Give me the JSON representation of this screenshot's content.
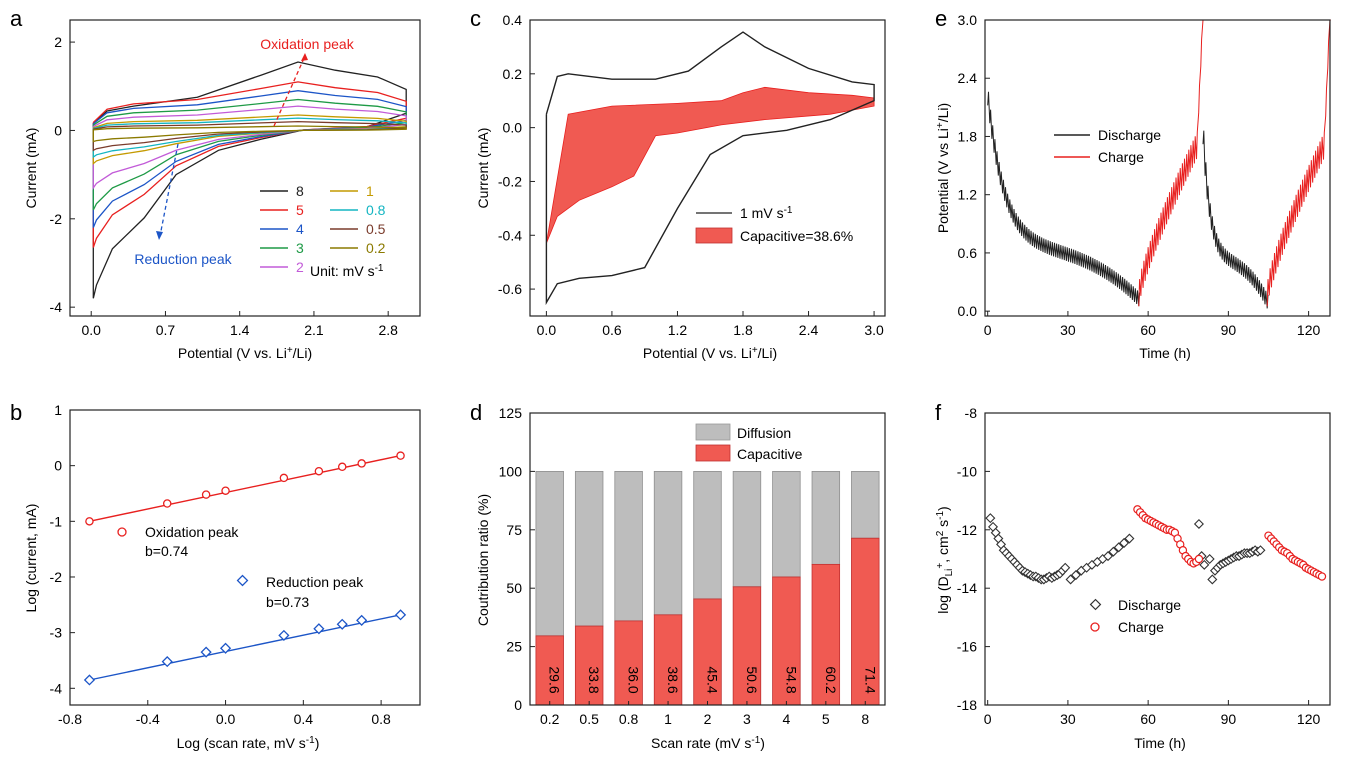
{
  "panels": {
    "a": {
      "letter": "a",
      "xlabel_pre": "Potential (V vs. Li",
      "xlabel_sup": "+",
      "xlabel_post": "/Li)",
      "ylabel": "Current (mA)",
      "xticks": [
        "0.0",
        "0.7",
        "1.4",
        "2.1",
        "2.8"
      ],
      "yticks": [
        "2",
        "0",
        "-2",
        "-4"
      ],
      "oxidation_label": "Oxidation peak",
      "reduction_label": "Reduction peak",
      "legend": [
        {
          "label": "8",
          "color": "#222222"
        },
        {
          "label": "1",
          "color": "#c49a00"
        },
        {
          "label": "5",
          "color": "#e8201f"
        },
        {
          "label": "0.8",
          "color": "#13b5c2"
        },
        {
          "label": "4",
          "color": "#1c55c7"
        },
        {
          "label": "0.5",
          "color": "#7a3b2b"
        },
        {
          "label": "3",
          "color": "#1e9a46"
        },
        {
          "label": "0.2",
          "color": "#8b7a00"
        },
        {
          "label": "2",
          "color": "#c25bd8"
        }
      ],
      "unit_pre": "Unit: mV s",
      "unit_sup": "-1"
    },
    "b": {
      "letter": "b",
      "xlabel_pre": "Log (scan rate, mV s",
      "xlabel_sup": "-1",
      "xlabel_post": ")",
      "ylabel": "Log (current, mA)",
      "xticks": [
        "-0.8",
        "-0.4",
        "0.0",
        "0.4",
        "0.8"
      ],
      "yticks": [
        "1",
        "0",
        "-1",
        "-2",
        "-3",
        "-4"
      ],
      "ox_label": "Oxidation peak",
      "ox_b": "b=0.74",
      "red_label": "Reduction peak",
      "red_b": "b=0.73"
    },
    "c": {
      "letter": "c",
      "xlabel_pre": "Potential (V vs. Li",
      "xlabel_sup": "+",
      "xlabel_post": "/Li)",
      "ylabel": "Current (mA)",
      "xticks": [
        "0.0",
        "0.6",
        "1.2",
        "1.8",
        "2.4",
        "3.0"
      ],
      "yticks": [
        "0.4",
        "0.2",
        "0.0",
        "-0.2",
        "-0.4",
        "-0.6"
      ],
      "legend_cv_pre": "1 mV s",
      "legend_cv_sup": "-1",
      "legend_cap": "Capacitive=38.6%"
    },
    "d": {
      "letter": "d",
      "xlabel_pre": "Scan rate (mV s",
      "xlabel_sup": "-1",
      "xlabel_post": ")",
      "ylabel": "Coutribution ratio (%)",
      "yticks": [
        "125",
        "100",
        "75",
        "50",
        "25",
        "0"
      ],
      "legend_diff": "Diffusion",
      "legend_cap": "Capacitive"
    },
    "e": {
      "letter": "e",
      "xlabel": "Time (h)",
      "ylabel_pre": "Potential (V vs Li",
      "ylabel_sup": "+",
      "ylabel_post": "/Li)",
      "xticks": [
        "0",
        "30",
        "60",
        "90",
        "120"
      ],
      "yticks": [
        "3.0",
        "2.4",
        "1.8",
        "1.2",
        "0.6",
        "0.0"
      ],
      "legend_dis": "Discharge",
      "legend_chg": "Charge"
    },
    "f": {
      "letter": "f",
      "xlabel": "Time (h)",
      "ylabel_pre": "log (D",
      "ylabel_sub": "Li",
      "ylabel_mid": "+",
      "ylabel_post": ", cm",
      "ylabel_sup2": "2",
      "ylabel_end": " s",
      "ylabel_sup3": "-1",
      "ylabel_close": ")",
      "xticks": [
        "0",
        "30",
        "60",
        "90",
        "120"
      ],
      "yticks": [
        "-8",
        "-10",
        "-12",
        "-14",
        "-16",
        "-18"
      ],
      "legend_dis": "Discharge",
      "legend_chg": "Charge"
    }
  },
  "colors": {
    "axis": "#222222",
    "red": "#e8201f",
    "blue": "#1c55c7",
    "capacitive_fill": "#f05a52",
    "diffusion_fill": "#bdbdbd"
  },
  "chart_data": [
    {
      "id": "a",
      "type": "line",
      "title": "",
      "xlabel": "Potential (V vs. Li+/Li)",
      "ylabel": "Current (mA)",
      "xlim": [
        -0.2,
        3.1
      ],
      "ylim": [
        -4.2,
        2.5
      ],
      "series": [
        {
          "name": "8",
          "upper_peak": 1.55,
          "upper_base": 0.55,
          "lower_min": -3.8,
          "lower_mid": -1.0
        },
        {
          "name": "5",
          "upper_peak": 1.1,
          "upper_base": 0.6,
          "lower_min": -2.65,
          "lower_mid": -0.8
        },
        {
          "name": "4",
          "upper_peak": 0.9,
          "upper_base": 0.5,
          "lower_min": -2.2,
          "lower_mid": -0.7
        },
        {
          "name": "3",
          "upper_peak": 0.7,
          "upper_base": 0.4,
          "lower_min": -1.8,
          "lower_mid": -0.55
        },
        {
          "name": "2",
          "upper_peak": 0.55,
          "upper_base": 0.3,
          "lower_min": -1.3,
          "lower_mid": -0.45
        },
        {
          "name": "1",
          "upper_peak": 0.35,
          "upper_base": 0.2,
          "lower_min": -0.75,
          "lower_mid": -0.3
        },
        {
          "name": "0.8",
          "upper_peak": 0.28,
          "upper_base": 0.15,
          "lower_min": -0.6,
          "lower_mid": -0.25
        },
        {
          "name": "0.5",
          "upper_peak": 0.2,
          "upper_base": 0.1,
          "lower_min": -0.45,
          "lower_mid": -0.18
        },
        {
          "name": "0.2",
          "upper_peak": 0.1,
          "upper_base": 0.05,
          "lower_min": -0.25,
          "lower_mid": -0.1
        }
      ]
    },
    {
      "id": "b",
      "type": "scatter",
      "xlabel": "Log (scan rate, mV s-1)",
      "ylabel": "Log (current, mA)",
      "xlim": [
        -0.8,
        1.0
      ],
      "ylim": [
        -4.3,
        1.0
      ],
      "series": [
        {
          "name": "Oxidation peak",
          "x": [
            -0.7,
            -0.3,
            -0.1,
            0.0,
            0.3,
            0.48,
            0.6,
            0.7,
            0.9
          ],
          "y": [
            -1.0,
            -0.68,
            -0.52,
            -0.45,
            -0.22,
            -0.1,
            -0.02,
            0.04,
            0.18
          ],
          "fit": [
            [
              -0.7,
              -1.0
            ],
            [
              0.9,
              0.18
            ]
          ]
        },
        {
          "name": "Reduction peak",
          "x": [
            -0.7,
            -0.3,
            -0.1,
            0.0,
            0.3,
            0.48,
            0.6,
            0.7,
            0.9
          ],
          "y": [
            -3.85,
            -3.52,
            -3.35,
            -3.28,
            -3.05,
            -2.93,
            -2.85,
            -2.78,
            -2.68
          ],
          "fit": [
            [
              -0.7,
              -3.85
            ],
            [
              0.9,
              -2.68
            ]
          ]
        }
      ]
    },
    {
      "id": "c",
      "type": "area",
      "xlabel": "Potential (V vs. Li+/Li)",
      "ylabel": "Current (mA)",
      "xlim": [
        -0.15,
        3.1
      ],
      "ylim": [
        -0.7,
        0.4
      ],
      "cv_upper": [
        [
          0.0,
          0.05
        ],
        [
          0.1,
          0.19
        ],
        [
          0.2,
          0.2
        ],
        [
          0.6,
          0.18
        ],
        [
          1.0,
          0.18
        ],
        [
          1.3,
          0.21
        ],
        [
          1.6,
          0.3
        ],
        [
          1.8,
          0.355
        ],
        [
          2.0,
          0.3
        ],
        [
          2.4,
          0.22
        ],
        [
          2.8,
          0.17
        ],
        [
          3.0,
          0.16
        ]
      ],
      "cv_lower": [
        [
          3.0,
          0.1
        ],
        [
          2.6,
          0.03
        ],
        [
          2.2,
          -0.01
        ],
        [
          1.8,
          -0.03
        ],
        [
          1.5,
          -0.1
        ],
        [
          1.2,
          -0.3
        ],
        [
          0.9,
          -0.52
        ],
        [
          0.6,
          -0.55
        ],
        [
          0.3,
          -0.56
        ],
        [
          0.1,
          -0.58
        ],
        [
          0.0,
          -0.65
        ]
      ],
      "cap_upper": [
        [
          0.0,
          -0.43
        ],
        [
          0.2,
          0.05
        ],
        [
          0.6,
          0.08
        ],
        [
          1.2,
          0.09
        ],
        [
          1.6,
          0.1
        ],
        [
          1.8,
          0.13
        ],
        [
          2.0,
          0.15
        ],
        [
          2.4,
          0.13
        ],
        [
          2.8,
          0.12
        ],
        [
          3.0,
          0.11
        ]
      ],
      "cap_lower": [
        [
          3.0,
          0.08
        ],
        [
          2.6,
          0.05
        ],
        [
          2.0,
          0.03
        ],
        [
          1.6,
          0.01
        ],
        [
          1.2,
          -0.02
        ],
        [
          1.0,
          -0.03
        ],
        [
          0.8,
          -0.18
        ],
        [
          0.6,
          -0.22
        ],
        [
          0.3,
          -0.27
        ],
        [
          0.1,
          -0.33
        ],
        [
          0.0,
          -0.43
        ]
      ]
    },
    {
      "id": "d",
      "type": "bar",
      "xlabel": "Scan rate (mV s-1)",
      "ylabel": "Coutribution ratio (%)",
      "ylim": [
        0,
        125
      ],
      "categories": [
        "0.2",
        "0.5",
        "0.8",
        "1",
        "2",
        "3",
        "4",
        "5",
        "8"
      ],
      "series": [
        {
          "name": "Capacitive",
          "values": [
            29.6,
            33.8,
            36.0,
            38.6,
            45.4,
            50.6,
            54.8,
            60.2,
            71.4
          ]
        },
        {
          "name": "Diffusion",
          "values": [
            70.4,
            66.2,
            64.0,
            61.4,
            54.6,
            49.4,
            45.2,
            39.8,
            28.6
          ]
        }
      ],
      "labels": [
        "29.6",
        "33.8",
        "36.0",
        "38.6",
        "45.4",
        "50.6",
        "54.8",
        "60.2",
        "71.4"
      ]
    },
    {
      "id": "e",
      "type": "line",
      "xlabel": "Time (h)",
      "ylabel": "Potential (V vs Li+/Li)",
      "xlim": [
        -1,
        128
      ],
      "ylim": [
        -0.05,
        3.0
      ],
      "series": [
        {
          "name": "Discharge",
          "segments": [
            {
              "t0": 0,
              "t1": 56.5,
              "v_start": 2.2,
              "v_end": 0.0
            },
            {
              "t0": 80.5,
              "t1": 104.5,
              "v_start": 1.8,
              "v_end": 0.0
            }
          ]
        },
        {
          "name": "Charge",
          "segments": [
            {
              "t0": 56.5,
              "t1": 80.5,
              "v_start": 0.05,
              "v_end": 3.0
            },
            {
              "t0": 104.5,
              "t1": 128,
              "v_start": 0.05,
              "v_end": 3.0
            }
          ]
        }
      ]
    },
    {
      "id": "f",
      "type": "scatter",
      "xlabel": "Time (h)",
      "ylabel": "log (DLi+, cm2 s-1)",
      "xlim": [
        -1,
        128
      ],
      "ylim": [
        -18,
        -8
      ],
      "series": [
        {
          "name": "Discharge",
          "x": [
            1,
            2,
            3,
            4,
            5,
            6,
            7,
            8,
            9,
            10,
            11,
            12,
            13,
            14,
            15,
            16,
            17,
            18,
            19,
            20,
            21,
            22,
            23,
            24,
            25,
            26,
            27,
            28,
            29,
            31,
            33,
            35,
            37,
            39,
            41,
            43,
            45,
            47,
            49,
            51,
            53,
            79,
            80,
            81,
            83,
            84,
            85,
            86,
            87,
            88,
            89,
            90,
            91,
            92,
            93,
            94,
            95,
            96,
            97,
            98,
            99,
            100,
            101,
            102
          ],
          "y": [
            -11.6,
            -11.9,
            -12.1,
            -12.3,
            -12.5,
            -12.7,
            -12.8,
            -12.9,
            -13.0,
            -13.1,
            -13.2,
            -13.3,
            -13.4,
            -13.45,
            -13.5,
            -13.55,
            -13.6,
            -13.6,
            -13.65,
            -13.7,
            -13.7,
            -13.65,
            -13.6,
            -13.65,
            -13.6,
            -13.55,
            -13.5,
            -13.4,
            -13.3,
            -13.7,
            -13.55,
            -13.4,
            -13.3,
            -13.2,
            -13.1,
            -13.0,
            -12.9,
            -12.75,
            -12.6,
            -12.45,
            -12.3,
            -11.8,
            -12.9,
            -13.2,
            -13.0,
            -13.7,
            -13.4,
            -13.3,
            -13.2,
            -13.15,
            -13.1,
            -13.05,
            -13.0,
            -12.95,
            -12.9,
            -12.9,
            -12.85,
            -12.8,
            -12.8,
            -12.8,
            -12.75,
            -12.7,
            -12.75,
            -12.7
          ]
        },
        {
          "name": "Charge",
          "x": [
            56,
            57,
            58,
            59,
            60,
            61,
            62,
            63,
            64,
            65,
            66,
            67,
            68,
            69,
            70,
            71,
            72,
            73,
            74,
            75,
            76,
            77,
            78,
            79,
            105,
            106,
            107,
            108,
            109,
            110,
            111,
            112,
            113,
            114,
            115,
            116,
            117,
            118,
            119,
            120,
            121,
            122,
            123,
            124,
            125
          ],
          "y": [
            -11.3,
            -11.4,
            -11.5,
            -11.6,
            -11.65,
            -11.7,
            -11.75,
            -11.8,
            -11.85,
            -11.9,
            -11.95,
            -12.0,
            -12.0,
            -12.05,
            -12.1,
            -12.3,
            -12.5,
            -12.7,
            -12.9,
            -13.0,
            -13.1,
            -13.15,
            -13.1,
            -13.0,
            -12.2,
            -12.3,
            -12.4,
            -12.5,
            -12.6,
            -12.7,
            -12.75,
            -12.8,
            -12.9,
            -13.0,
            -13.05,
            -13.1,
            -13.15,
            -13.2,
            -13.3,
            -13.35,
            -13.4,
            -13.45,
            -13.5,
            -13.55,
            -13.6
          ]
        }
      ]
    }
  ]
}
